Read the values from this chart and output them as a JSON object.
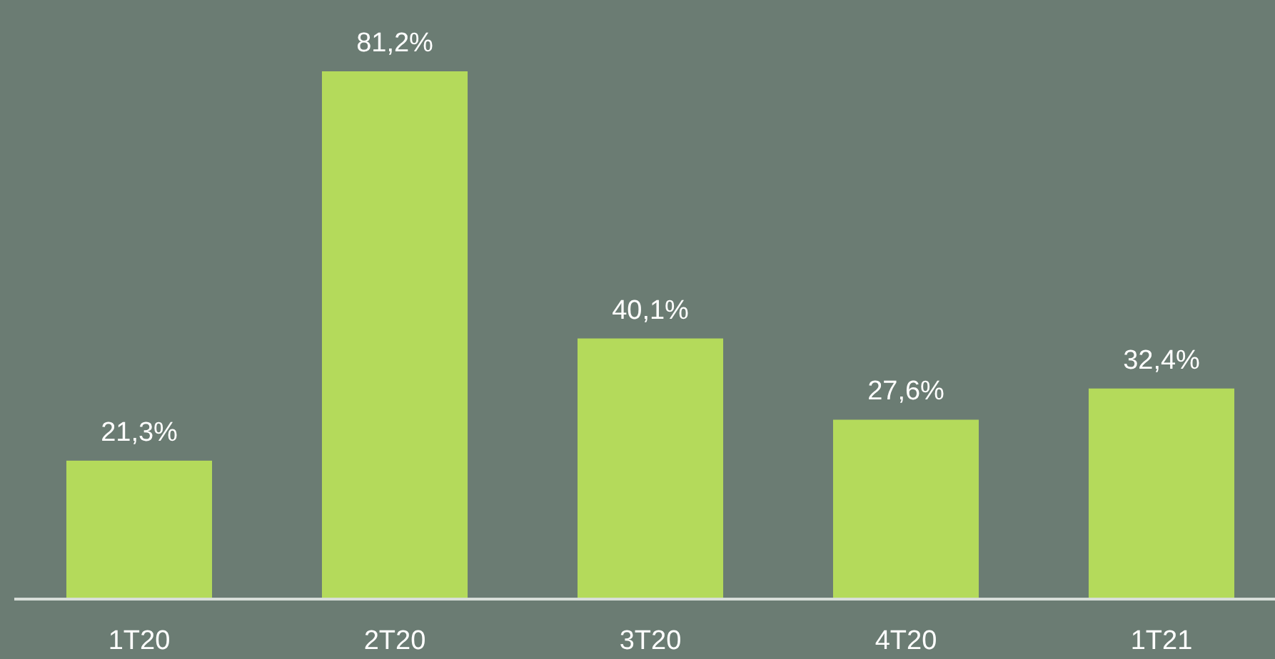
{
  "chart_data": {
    "type": "bar",
    "categories": [
      "1T20",
      "2T20",
      "3T20",
      "4T20",
      "1T21"
    ],
    "values": [
      21.3,
      81.2,
      40.1,
      27.6,
      32.4
    ],
    "value_labels": [
      "21,3%",
      "81,2%",
      "40,1%",
      "27,6%",
      "32,4%"
    ],
    "color": "#b4da5b",
    "ylim": [
      0,
      81.2
    ],
    "tick_labels": "x"
  }
}
